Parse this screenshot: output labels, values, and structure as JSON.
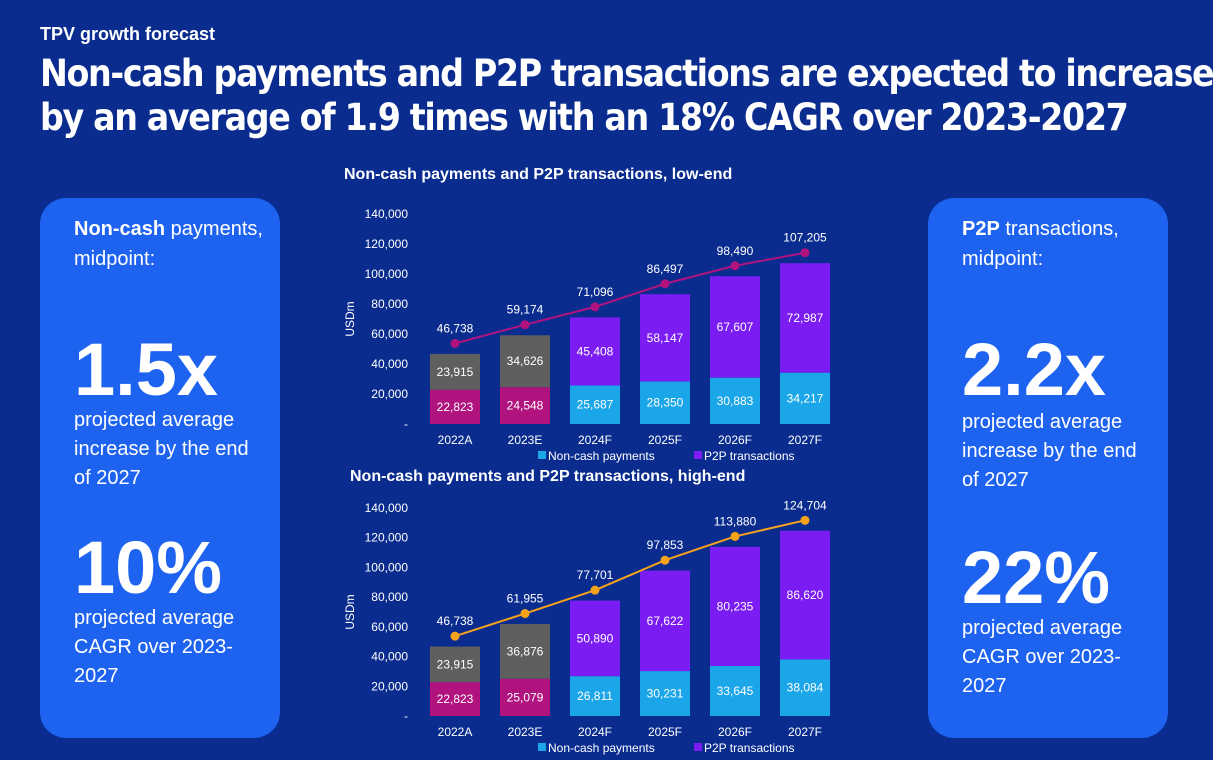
{
  "eyebrow": "TPV growth forecast",
  "headline_line1": "Non-cash payments and P2P transactions are expected to increase",
  "headline_line2": "by an average of 1.9 times with an 18% CAGR over 2023-2027",
  "left_card": {
    "label_bold": "Non-cash",
    "label_rest": " payments,",
    "label_line2": "midpoint:",
    "stat1": "1.5x",
    "desc1": "projected average increase by the end of 2027",
    "stat2": "10%",
    "desc2": "projected average CAGR over 2023-2027"
  },
  "right_card": {
    "label_bold": "P2P",
    "label_rest": " transactions,",
    "label_line2": "midpoint:",
    "stat1": "2.2x",
    "desc1": "projected average increase by the end of 2027",
    "stat2": "22%",
    "desc2": "projected average CAGR over 2023-2027"
  },
  "colors": {
    "background": "#0a2c8f",
    "card": "#1e63f0",
    "noncash_actual": "#b0127e",
    "p2p_actual": "#5f5f5f",
    "noncash_forecast": "#1aa6e8",
    "p2p_forecast": "#7a1cf2",
    "line_low": "#b0127e",
    "line_high": "#f7a21b"
  },
  "chart_data": [
    {
      "type": "bar",
      "stacked": true,
      "title": "Non-cash payments and P2P transactions, low-end",
      "ylabel": "USDm",
      "ylim": [
        0,
        140000
      ],
      "yticks": [
        "-",
        "20,000",
        "40,000",
        "60,000",
        "80,000",
        "100,000",
        "120,000",
        "140,000"
      ],
      "categories": [
        "2022A",
        "2023E",
        "2024F",
        "2025F",
        "2026F",
        "2027F"
      ],
      "series": [
        {
          "name": "Non-cash payments",
          "values": [
            22823,
            24548,
            25687,
            28350,
            30883,
            34217
          ]
        },
        {
          "name": "P2P transactions",
          "values": [
            23915,
            34626,
            45408,
            58147,
            67607,
            72987
          ]
        }
      ],
      "totals": [
        46738,
        59174,
        71096,
        86497,
        98490,
        107205
      ],
      "value_labels": {
        "noncash": [
          "22,823",
          "24,548",
          "25,687",
          "28,350",
          "30,883",
          "34,217"
        ],
        "p2p": [
          "23,915",
          "34,626",
          "45,408",
          "58,147",
          "67,607",
          "72,987"
        ],
        "totals": [
          "46,738",
          "59,174",
          "71,096",
          "86,497",
          "98,490",
          "107,205"
        ]
      },
      "legend": [
        "Non-cash payments",
        "P2P transactions"
      ],
      "legend_position": "bottom",
      "line_color_key": "line_low"
    },
    {
      "type": "bar",
      "stacked": true,
      "title": "Non-cash payments and P2P transactions, high-end",
      "ylabel": "USDm",
      "ylim": [
        0,
        140000
      ],
      "yticks": [
        "-",
        "20,000",
        "40,000",
        "60,000",
        "80,000",
        "100,000",
        "120,000",
        "140,000"
      ],
      "categories": [
        "2022A",
        "2023E",
        "2024F",
        "2025F",
        "2026F",
        "2027F"
      ],
      "series": [
        {
          "name": "Non-cash payments",
          "values": [
            22823,
            25079,
            26811,
            30231,
            33645,
            38084
          ]
        },
        {
          "name": "P2P transactions",
          "values": [
            23915,
            36876,
            50890,
            67622,
            80235,
            86620
          ]
        }
      ],
      "totals": [
        46738,
        61955,
        77701,
        97853,
        113880,
        124704
      ],
      "value_labels": {
        "noncash": [
          "22,823",
          "25,079",
          "26,811",
          "30,231",
          "33,645",
          "38,084"
        ],
        "p2p": [
          "23,915",
          "36,876",
          "50,890",
          "67,622",
          "80,235",
          "86,620"
        ],
        "totals": [
          "46,738",
          "61,955",
          "77,701",
          "97,853",
          "113,880",
          "124,704"
        ]
      },
      "legend": [
        "Non-cash payments",
        "P2P transactions"
      ],
      "legend_position": "bottom",
      "line_color_key": "line_high"
    }
  ]
}
